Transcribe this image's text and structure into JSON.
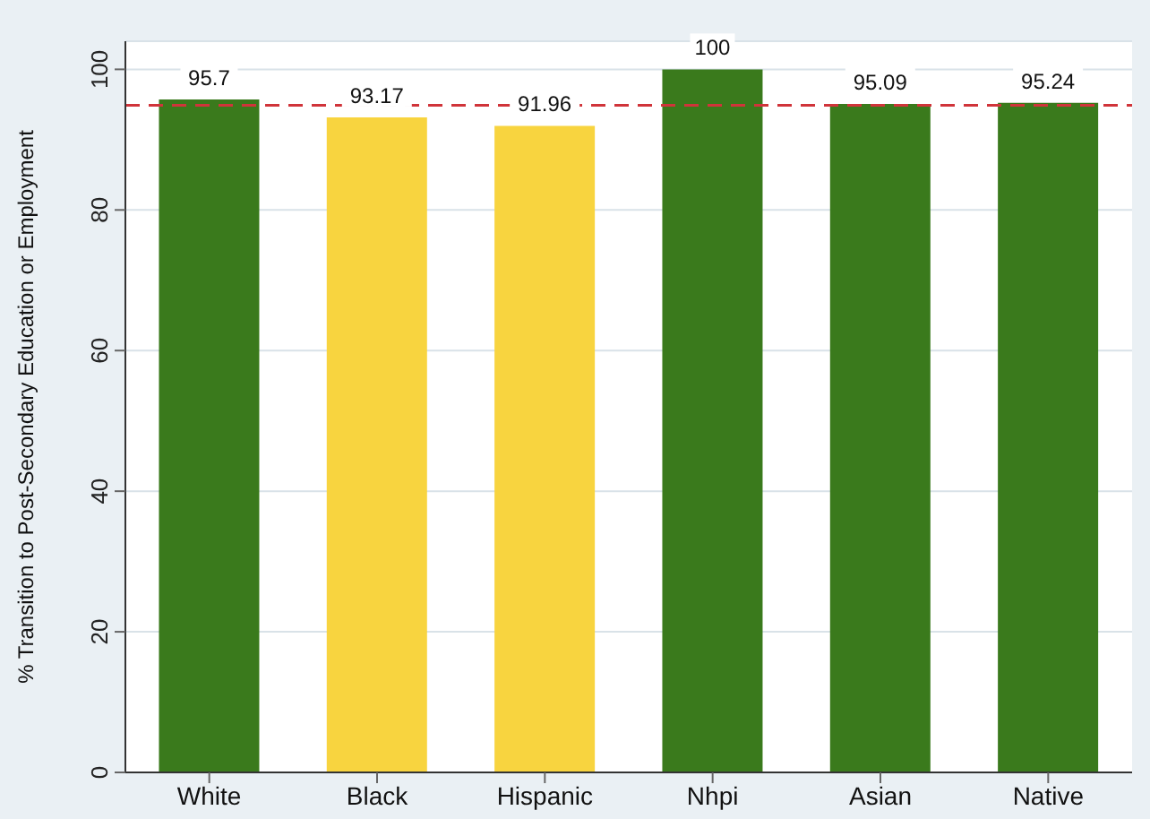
{
  "chart_data": {
    "type": "bar",
    "ylabel": "% Transition to Post-Secondary Education or Employment",
    "categories": [
      "White",
      "Black",
      "Hispanic",
      "Nhpi",
      "Asian",
      "Native"
    ],
    "values": [
      95.7,
      93.17,
      91.96,
      100,
      95.09,
      95.24
    ],
    "colors": [
      "#3a7a1c",
      "#f8d43f",
      "#f8d43f",
      "#3a7a1c",
      "#3a7a1c",
      "#3a7a1c"
    ],
    "ylim": [
      0,
      104
    ],
    "yticks": [
      0,
      20,
      40,
      60,
      80,
      100
    ],
    "grid": "y",
    "data_labels": true,
    "legend": false,
    "ref_lines": [
      {
        "axis": "y",
        "value": 94.9,
        "color": "#d0343a",
        "line_style": "dashed"
      }
    ]
  }
}
